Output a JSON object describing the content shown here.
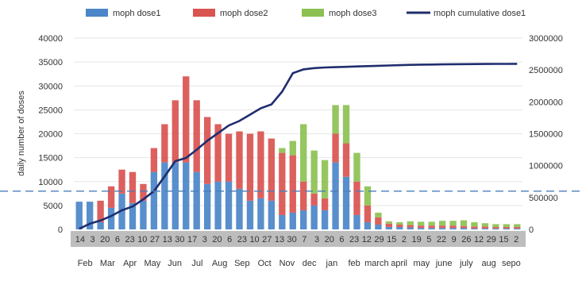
{
  "chart_data": {
    "type": "bar",
    "xlabel": "",
    "ylabel": "daily number of doses",
    "ylim": [
      0,
      40000
    ],
    "y_ticks": [
      "0",
      "5000",
      "10000",
      "15000",
      "20000",
      "25000",
      "30000",
      "35000",
      "40000"
    ],
    "y2lim": [
      0,
      3000000
    ],
    "y2_ticks": [
      "0",
      "500000",
      "1000000",
      "1500000",
      "2000000",
      "2500000",
      "3000000"
    ],
    "threshold": 8000,
    "day_labels": [
      "14",
      "3",
      "20",
      "6",
      "23",
      "10",
      "27",
      "13",
      "30",
      "17",
      "3",
      "20",
      "6",
      "23",
      "10",
      "27",
      "13",
      "30",
      "7",
      "3",
      "20",
      "6",
      "23",
      "12",
      "29",
      "15",
      "2",
      "19",
      "5",
      "22",
      "9",
      "26",
      "12",
      "29",
      "15",
      "2"
    ],
    "month_labels": [
      "Feb",
      "Mar",
      "Apr",
      "May",
      "Jun",
      "Jul",
      "Aug",
      "Sep",
      "Oct",
      "Nov",
      "dec",
      "jan",
      "feb",
      "march",
      "april",
      "may",
      "june",
      "july",
      "aug",
      "sepo"
    ],
    "legend": [
      "moph dose1",
      "moph dose2",
      "moph dose3",
      "moph cumulative dose1"
    ],
    "colors": {
      "dose1": "#4a86c8",
      "dose2": "#d9534f",
      "dose3": "#8cc152",
      "cumulative": "#1f2d6e",
      "threshold": "#4a7fb8",
      "axis_band": "#bdbdbd"
    },
    "series": [
      {
        "name": "moph dose1",
        "values": [
          5800,
          5800,
          1500,
          4500,
          7500,
          5500,
          6000,
          12000,
          14000,
          14000,
          14000,
          12000,
          9500,
          10000,
          10000,
          8500,
          6000,
          6500,
          6000,
          3000,
          3500,
          4000,
          5000,
          4000,
          14000,
          11000,
          3000,
          1500,
          1000,
          500,
          500,
          400,
          300,
          300,
          300,
          300,
          300,
          200,
          200,
          200,
          200,
          200
        ]
      },
      {
        "name": "moph dose2",
        "values": [
          0,
          0,
          4500,
          4500,
          5000,
          6500,
          3500,
          5000,
          8000,
          13000,
          18000,
          15000,
          14000,
          12000,
          10000,
          12000,
          14000,
          14000,
          13000,
          13000,
          12000,
          6000,
          2500,
          2500,
          6000,
          7000,
          7000,
          3500,
          1500,
          700,
          500,
          500,
          500,
          500,
          500,
          500,
          400,
          400,
          400,
          300,
          300,
          300
        ]
      },
      {
        "name": "moph dose3",
        "values": [
          0,
          0,
          0,
          0,
          0,
          0,
          0,
          0,
          0,
          0,
          0,
          0,
          0,
          0,
          0,
          0,
          0,
          0,
          0,
          1000,
          3000,
          12000,
          9000,
          8000,
          6000,
          8000,
          6000,
          4000,
          1000,
          500,
          500,
          800,
          800,
          800,
          1000,
          1000,
          1200,
          900,
          700,
          600,
          600,
          600
        ]
      },
      {
        "name": "moph cumulative dose1",
        "values": [
          10000,
          90000,
          140000,
          210000,
          300000,
          360000,
          470000,
          600000,
          830000,
          1070000,
          1120000,
          1250000,
          1390000,
          1510000,
          1630000,
          1700000,
          1800000,
          1900000,
          1960000,
          2160000,
          2450000,
          2510000,
          2530000,
          2540000,
          2545000,
          2550000,
          2555000,
          2560000,
          2565000,
          2570000,
          2575000,
          2580000,
          2584000,
          2586000,
          2588000,
          2590000,
          2592000,
          2593000,
          2594000,
          2595000,
          2596000,
          2597000
        ]
      }
    ]
  }
}
